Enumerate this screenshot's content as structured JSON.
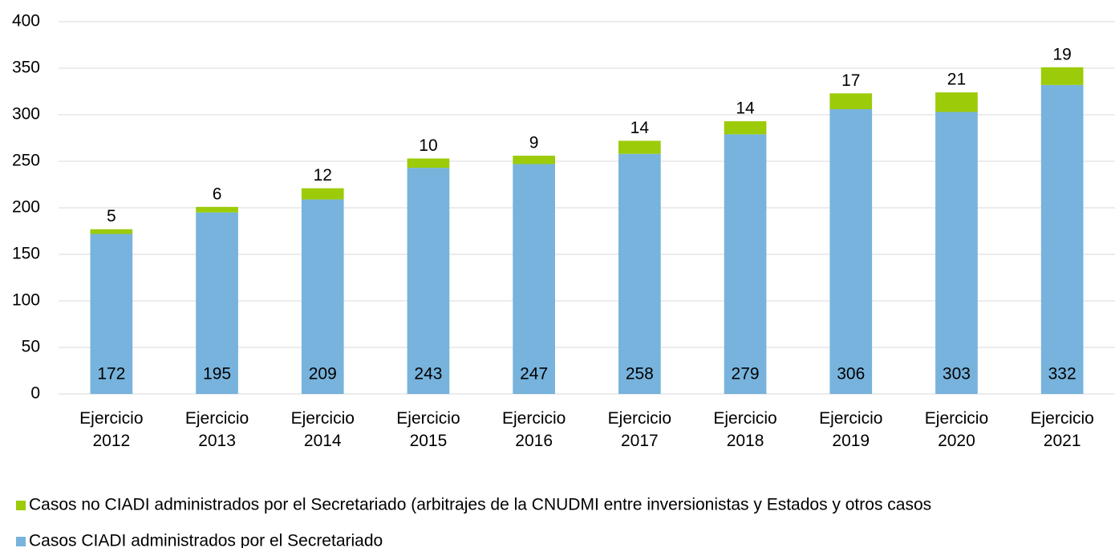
{
  "chart_data": {
    "type": "stacked_bar",
    "categories": [
      "Ejercicio 2012",
      "Ejercicio 2013",
      "Ejercicio 2014",
      "Ejercicio 2015",
      "Ejercicio 2016",
      "Ejercicio 2017",
      "Ejercicio 2018",
      "Ejercicio 2019",
      "Ejercicio 2020",
      "Ejercicio 2021"
    ],
    "series": [
      {
        "name": "Casos CIADI administrados por el Secretariado",
        "color": "#77b3dc",
        "values": [
          172,
          195,
          209,
          243,
          247,
          258,
          279,
          306,
          303,
          332
        ]
      },
      {
        "name": "Casos no CIADI administrados por el Secretariado (arbitrajes de la CNUDMI entre inversionistas y Estados y otros casos",
        "color": "#9ccb09",
        "values": [
          5,
          6,
          12,
          10,
          9,
          14,
          14,
          17,
          21,
          19
        ]
      }
    ],
    "ylim": [
      0,
      400
    ],
    "yticks": [
      0,
      50,
      100,
      150,
      200,
      250,
      300,
      350,
      400
    ],
    "grid": true,
    "legend": "bottom"
  }
}
